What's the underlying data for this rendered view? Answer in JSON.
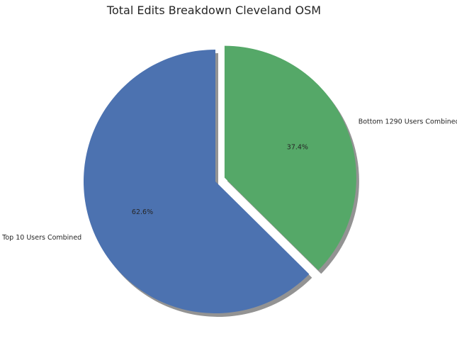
{
  "chart_data": {
    "type": "pie",
    "title": "Total Edits Breakdown Cleveland OSM",
    "slices": [
      {
        "label": "Top 10 Users Combined",
        "value": 62.6,
        "pct_label": "62.6%",
        "color": "#4c72b0",
        "exploded": false
      },
      {
        "label": "Bottom 1290 Users Combined",
        "value": 37.4,
        "pct_label": "37.4%",
        "color": "#55a868",
        "exploded": true
      }
    ],
    "start_angle_deg": 90,
    "direction": "counterclockwise",
    "shadow": true
  }
}
